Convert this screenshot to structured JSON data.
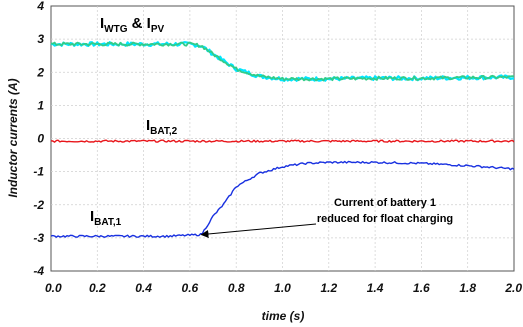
{
  "chart_data": {
    "type": "line",
    "xlabel": "time (s)",
    "ylabel": "Inductor currents (A)",
    "xlim": [
      0.0,
      2.0
    ],
    "ylim": [
      -4,
      4
    ],
    "x_ticks": [
      "0.0",
      "0.2",
      "0.4",
      "0.6",
      "0.8",
      "1.0",
      "1.2",
      "1.4",
      "1.6",
      "1.8",
      "2.0"
    ],
    "y_ticks": [
      "-4",
      "-3",
      "-2",
      "-1",
      "0",
      "1",
      "2",
      "3",
      "4"
    ],
    "grid": true,
    "series": [
      {
        "name": "IWTG & IPV",
        "label_main": "I",
        "label_sub": "WTG",
        "label_join": " & ",
        "label_main2": "I",
        "label_sub2": "PV",
        "color": "#33cc88",
        "color2": "#00e5ff",
        "x": [
          0.0,
          0.1,
          0.2,
          0.3,
          0.4,
          0.5,
          0.6,
          0.65,
          0.7,
          0.8,
          0.9,
          1.0,
          1.1,
          1.2,
          1.4,
          1.6,
          1.8,
          2.0
        ],
        "values": [
          2.85,
          2.85,
          2.85,
          2.85,
          2.85,
          2.85,
          2.85,
          2.8,
          2.55,
          2.1,
          1.88,
          1.8,
          1.8,
          1.8,
          1.82,
          1.82,
          1.84,
          1.85
        ]
      },
      {
        "name": "IBAT,2",
        "label_main": "I",
        "label_sub": "BAT,2",
        "color": "#e8151a",
        "x": [
          0.0,
          0.5,
          1.0,
          1.5,
          2.0
        ],
        "values": [
          -0.08,
          -0.08,
          -0.08,
          -0.08,
          -0.08
        ]
      },
      {
        "name": "IBAT,1",
        "label_main": "I",
        "label_sub": "BAT,1",
        "color": "#1830e0",
        "x": [
          0.0,
          0.1,
          0.2,
          0.3,
          0.4,
          0.5,
          0.6,
          0.65,
          0.7,
          0.75,
          0.8,
          0.9,
          1.0,
          1.1,
          1.2,
          1.3,
          1.4,
          1.6,
          1.8,
          2.0
        ],
        "values": [
          -2.95,
          -2.95,
          -2.95,
          -2.95,
          -2.95,
          -2.95,
          -2.92,
          -2.9,
          -2.35,
          -1.95,
          -1.45,
          -1.05,
          -0.85,
          -0.75,
          -0.72,
          -0.72,
          -0.72,
          -0.75,
          -0.82,
          -0.92
        ]
      }
    ],
    "annotation": {
      "line1": "Current of battery 1",
      "line2": "reduced for float charging",
      "arrow_to": [
        0.65,
        -2.9
      ]
    }
  }
}
